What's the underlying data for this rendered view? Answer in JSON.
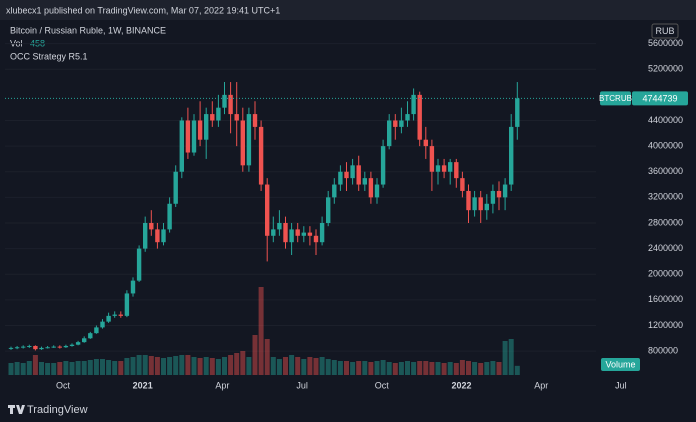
{
  "header": {
    "publisher": "xlubecx1 published on TradingView.com, Mar 07, 2022 19:41 UTC+1"
  },
  "chart_data": {
    "type": "candlestick",
    "title": "Bitcoin / Russian Ruble, 1W, BINANCE",
    "volume_label": "Vol",
    "indicator": "OCC Strategy R5.1",
    "currency": "RUB",
    "symbol": "BTCRUB",
    "volume_tag": "Volume",
    "up_color": "#26a69a",
    "down_color": "#ef5350",
    "ylim": [
      380000,
      6000000
    ],
    "yticks": [
      800000,
      1200000,
      1600000,
      2000000,
      2400000,
      2800000,
      3200000,
      3600000,
      4000000,
      4400000,
      5200000,
      5600000
    ],
    "x_labels": [
      "Oct",
      "2021",
      "Apr",
      "Jul",
      "Oct",
      "2022",
      "Apr",
      "Jul"
    ],
    "open": [
      840000,
      850000,
      860000,
      870000,
      880000,
      830000,
      850000,
      860000,
      870000,
      860000,
      880000,
      900000,
      940000,
      1000000,
      1080000,
      1170000,
      1260000,
      1350000,
      1370000,
      1350000,
      1700000,
      1900000,
      2400000,
      2800000,
      2700000,
      2500000,
      2700000,
      3100000,
      3600000,
      4400000,
      3900000,
      4400000,
      4100000,
      4500000,
      4400000,
      4600000,
      4800000,
      4500000,
      4400000,
      3700000,
      4500000,
      4300000,
      3400000,
      2600000,
      2700000,
      2800000,
      2500000,
      2700000,
      2600000,
      2650000,
      2600000,
      2500000,
      2800000,
      3200000,
      3400000,
      3600000,
      3500000,
      3700000,
      3400000,
      3500000,
      3200000,
      3400000,
      4000000,
      4400000,
      4300000,
      4400000,
      4500000,
      4800000,
      4100000,
      4000000,
      3600000,
      3700000,
      3600000,
      3750000,
      3500000,
      3300000,
      3000000,
      3200000,
      3000000,
      3100000,
      3300000,
      3200000,
      3400000,
      4300000
    ],
    "high": [
      870000,
      880000,
      890000,
      900000,
      890000,
      870000,
      880000,
      890000,
      890000,
      900000,
      920000,
      960000,
      1030000,
      1100000,
      1200000,
      1300000,
      1400000,
      1420000,
      1420000,
      1750000,
      1950000,
      2450000,
      2900000,
      3000000,
      2800000,
      2800000,
      3200000,
      3700000,
      4450000,
      4600000,
      4500000,
      4700000,
      4600000,
      4700000,
      4800000,
      5000000,
      5000000,
      5000000,
      4600000,
      4600000,
      4700000,
      4400000,
      3500000,
      2900000,
      3000000,
      2900000,
      2800000,
      2800000,
      2750000,
      2750000,
      2700000,
      2900000,
      3300000,
      3500000,
      3700000,
      3750000,
      3800000,
      3850000,
      3600000,
      3600000,
      3500000,
      4100000,
      4500000,
      4500000,
      4600000,
      4700000,
      4900000,
      4850000,
      4300000,
      4100000,
      3800000,
      3800000,
      3800000,
      3800000,
      3600000,
      3400000,
      3300000,
      3300000,
      3250000,
      3400000,
      3450000,
      3500000,
      4500000,
      5000000
    ],
    "low": [
      820000,
      830000,
      840000,
      850000,
      810000,
      820000,
      840000,
      850000,
      840000,
      850000,
      870000,
      890000,
      930000,
      990000,
      1070000,
      1150000,
      1240000,
      1320000,
      1320000,
      1330000,
      1650000,
      1880000,
      2350000,
      2600000,
      2400000,
      2450000,
      2650000,
      3050000,
      3500000,
      3800000,
      3850000,
      4000000,
      3800000,
      4300000,
      4300000,
      4500000,
      4200000,
      4000000,
      3600000,
      3600000,
      4100000,
      3300000,
      2200000,
      2500000,
      2600000,
      2400000,
      2300000,
      2500000,
      2500000,
      2450000,
      2300000,
      2450000,
      2750000,
      3100000,
      3300000,
      3300000,
      3400000,
      3300000,
      3300000,
      3100000,
      3100000,
      3350000,
      3950000,
      4100000,
      4200000,
      4300000,
      4400000,
      4000000,
      3800000,
      3300000,
      3400000,
      3500000,
      3400000,
      3350000,
      3200000,
      2800000,
      2900000,
      2800000,
      2850000,
      2950000,
      3000000,
      3000000,
      3300000,
      4100000
    ],
    "close": [
      850000,
      860000,
      870000,
      880000,
      830000,
      850000,
      860000,
      870000,
      860000,
      880000,
      900000,
      940000,
      1000000,
      1080000,
      1170000,
      1260000,
      1350000,
      1370000,
      1350000,
      1700000,
      1900000,
      2400000,
      2800000,
      2700000,
      2500000,
      2700000,
      3100000,
      3600000,
      4400000,
      3900000,
      4400000,
      4100000,
      4500000,
      4400000,
      4600000,
      4800000,
      4500000,
      4400000,
      3700000,
      4500000,
      4300000,
      3400000,
      2600000,
      2700000,
      2800000,
      2500000,
      2700000,
      2600000,
      2650000,
      2600000,
      2500000,
      2800000,
      3200000,
      3400000,
      3600000,
      3500000,
      3700000,
      3400000,
      3500000,
      3200000,
      3400000,
      4000000,
      4400000,
      4300000,
      4400000,
      4500000,
      4800000,
      4100000,
      4000000,
      3600000,
      3700000,
      3600000,
      3750000,
      3500000,
      3300000,
      3000000,
      3200000,
      3000000,
      3100000,
      3300000,
      3200000,
      3400000,
      4300000,
      4744739
    ],
    "volume": [
      600,
      650,
      600,
      700,
      1000,
      650,
      600,
      600,
      650,
      700,
      650,
      700,
      700,
      750,
      800,
      800,
      750,
      700,
      700,
      850,
      900,
      1000,
      1000,
      950,
      900,
      850,
      900,
      950,
      1000,
      1000,
      900,
      850,
      900,
      850,
      800,
      900,
      1000,
      1100,
      1200,
      900,
      2000,
      4400,
      1800,
      900,
      800,
      900,
      1000,
      900,
      800,
      900,
      850,
      900,
      800,
      750,
      700,
      700,
      650,
      700,
      700,
      650,
      700,
      750,
      650,
      600,
      650,
      700,
      650,
      700,
      700,
      650,
      650,
      600,
      650,
      600,
      750,
      700,
      650,
      600,
      650,
      700,
      650,
      1700,
      1800,
      458
    ]
  },
  "footer": {
    "brand": "TradingView"
  }
}
